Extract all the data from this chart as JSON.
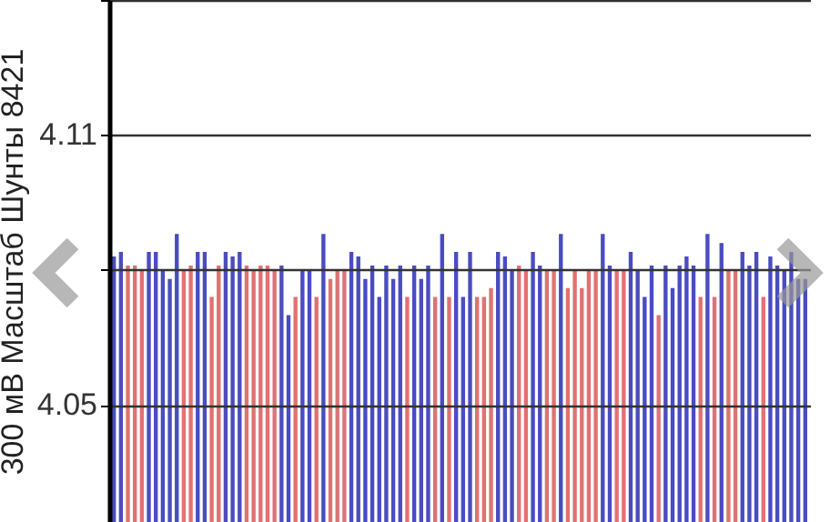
{
  "chart_data": {
    "type": "bar",
    "ylabel": "300 мВ Масштаб  Шунты 8421",
    "categories": [
      null,
      null,
      null,
      null,
      null,
      null,
      null,
      null,
      null,
      null,
      null,
      null,
      null,
      null,
      null,
      null,
      null,
      null,
      null,
      null,
      null,
      null,
      null,
      null,
      null,
      null,
      null,
      null,
      null,
      null,
      null,
      null,
      null,
      null,
      null,
      null,
      null,
      null,
      null,
      null,
      null,
      null,
      null,
      null,
      null,
      null,
      null,
      null,
      null,
      null,
      null,
      null,
      null,
      null,
      null,
      null,
      null,
      null,
      null,
      null,
      null,
      null,
      null,
      null,
      null,
      null,
      null,
      null,
      null,
      null,
      null,
      null,
      null,
      null,
      null,
      null,
      null,
      null,
      null,
      null,
      null,
      null,
      null,
      null,
      null,
      null,
      null,
      null,
      null,
      null,
      null,
      null,
      null,
      null,
      null,
      null,
      null,
      null,
      null,
      null
    ],
    "values": [
      4.083,
      4.084,
      4.081,
      4.081,
      4.08,
      4.084,
      4.084,
      4.08,
      4.078,
      4.088,
      4.08,
      4.081,
      4.084,
      4.084,
      4.074,
      4.081,
      4.084,
      4.083,
      4.084,
      4.081,
      4.08,
      4.081,
      4.081,
      4.08,
      4.081,
      4.07,
      4.074,
      4.08,
      4.08,
      4.074,
      4.088,
      4.078,
      4.08,
      4.08,
      4.084,
      4.083,
      4.078,
      4.081,
      4.074,
      4.081,
      4.078,
      4.081,
      4.074,
      4.081,
      4.078,
      4.081,
      4.074,
      4.088,
      4.074,
      4.084,
      4.074,
      4.084,
      4.074,
      4.074,
      4.076,
      4.084,
      4.083,
      4.08,
      4.081,
      4.08,
      4.084,
      4.081,
      4.08,
      4.08,
      4.088,
      4.076,
      4.08,
      4.076,
      4.08,
      4.08,
      4.088,
      4.081,
      4.08,
      4.08,
      4.084,
      4.08,
      4.074,
      4.081,
      4.07,
      4.081,
      4.076,
      4.081,
      4.083,
      4.081,
      4.074,
      4.088,
      4.074,
      4.086,
      4.08,
      4.08,
      4.084,
      4.081,
      4.084,
      4.074,
      4.083,
      4.081,
      4.08,
      4.084,
      4.078,
      4.078
    ],
    "colors": [
      "#4a4cc0",
      "#4a4cc0",
      "#e07272",
      "#e07272",
      "#e07272",
      "#4a4cc0",
      "#4a4cc0",
      "#4a4cc0",
      "#4a4cc0",
      "#4a4cc0",
      "#e07272",
      "#e07272",
      "#4a4cc0",
      "#4a4cc0",
      "#e07272",
      "#e07272",
      "#4a4cc0",
      "#4a4cc0",
      "#4a4cc0",
      "#e07272",
      "#e07272",
      "#e07272",
      "#e07272",
      "#e07272",
      "#4a4cc0",
      "#4a4cc0",
      "#e07272",
      "#4a4cc0",
      "#4a4cc0",
      "#e07272",
      "#4a4cc0",
      "#e07272",
      "#e07272",
      "#e07272",
      "#4a4cc0",
      "#4a4cc0",
      "#4a4cc0",
      "#4a4cc0",
      "#4a4cc0",
      "#4a4cc0",
      "#4a4cc0",
      "#4a4cc0",
      "#e07272",
      "#4a4cc0",
      "#4a4cc0",
      "#4a4cc0",
      "#e07272",
      "#4a4cc0",
      "#e07272",
      "#4a4cc0",
      "#4a4cc0",
      "#4a4cc0",
      "#e07272",
      "#e07272",
      "#e07272",
      "#4a4cc0",
      "#4a4cc0",
      "#4a4cc0",
      "#e07272",
      "#e07272",
      "#4a4cc0",
      "#4a4cc0",
      "#e07272",
      "#e07272",
      "#4a4cc0",
      "#e07272",
      "#e07272",
      "#e07272",
      "#e07272",
      "#e07272",
      "#4a4cc0",
      "#4a4cc0",
      "#e07272",
      "#e07272",
      "#4a4cc0",
      "#4a4cc0",
      "#4a4cc0",
      "#4a4cc0",
      "#e07272",
      "#4a4cc0",
      "#4a4cc0",
      "#4a4cc0",
      "#4a4cc0",
      "#4a4cc0",
      "#e07272",
      "#4a4cc0",
      "#e07272",
      "#4a4cc0",
      "#e07272",
      "#e07272",
      "#4a4cc0",
      "#4a4cc0",
      "#4a4cc0",
      "#e07272",
      "#4a4cc0",
      "#4a4cc0",
      "#4a4cc0",
      "#4a4cc0",
      "#4a4cc0",
      "#4a4cc0"
    ],
    "ylim": [
      4.024,
      4.14
    ],
    "yticks": [
      4.05,
      {
        "value": 4.08,
        "label": null
      },
      4.11,
      {
        "value": 4.14,
        "label": null
      }
    ],
    "grid": "y",
    "tick_labels": "y"
  }
}
